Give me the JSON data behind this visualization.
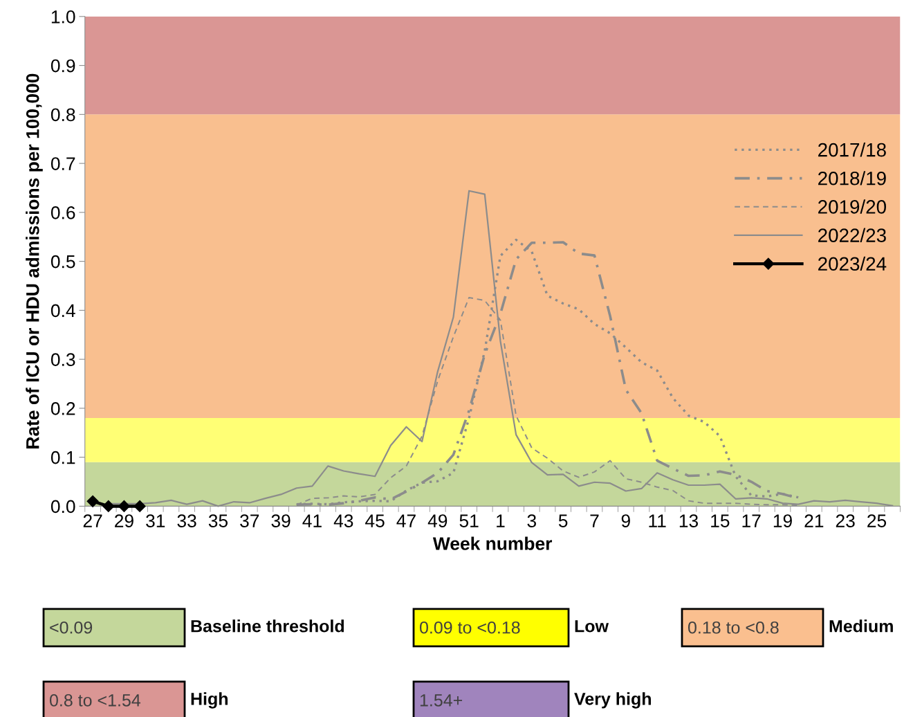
{
  "chart_data": [
    {
      "type": "line",
      "xlabel": "Week number",
      "ylabel": "Rate of ICU or HDU admissions per 100,000",
      "categories": [
        "27",
        null,
        "29",
        null,
        "31",
        null,
        "33",
        null,
        "35",
        null,
        "37",
        null,
        "39",
        null,
        "41",
        null,
        "43",
        null,
        "45",
        null,
        "47",
        null,
        "49",
        null,
        "51",
        null,
        "1",
        null,
        "3",
        null,
        "5",
        null,
        "7",
        null,
        "9",
        null,
        "11",
        null,
        "13",
        null,
        "15",
        null,
        "17",
        null,
        "19",
        null,
        "21",
        null,
        "23",
        null,
        "25",
        null
      ],
      "ylim": [
        0,
        1.0
      ],
      "yticks": [
        {
          "value": 0,
          "label": "0.0"
        },
        0.1,
        0.2,
        0.3,
        0.4,
        0.5,
        0.6,
        0.7,
        0.8,
        0.9,
        {
          "value": 1,
          "label": "1.0"
        }
      ],
      "grid": false,
      "legend": "top right",
      "bands": [
        {
          "axis": "y",
          "from": 0,
          "to": 0.09,
          "color": "#c4d79b"
        },
        {
          "axis": "y",
          "from": 0.09,
          "to": 0.18,
          "color": "#ffff75"
        },
        {
          "axis": "y",
          "from": 0.18,
          "to": 0.8,
          "color": "#f9bf8f"
        },
        {
          "axis": "y",
          "from": 0.8,
          "to": 1.0,
          "color": "#da9694"
        }
      ],
      "series": [
        {
          "name": "2017/18",
          "color": "#8c8c8c",
          "line_style": "dotted",
          "marker": "none",
          "values": [
            null,
            null,
            null,
            null,
            null,
            null,
            null,
            null,
            null,
            null,
            null,
            null,
            null,
            0.004,
            0.005,
            0.004,
            0.008,
            0.01,
            0.011,
            0.01,
            0.032,
            0.048,
            0.051,
            0.068,
            0.18,
            0.317,
            0.511,
            0.544,
            0.52,
            0.43,
            0.414,
            0.402,
            0.372,
            0.353,
            0.324,
            0.294,
            0.277,
            0.221,
            0.185,
            0.172,
            0.143,
            0.061,
            0.022,
            0.02,
            0.025,
            0.018,
            null,
            null,
            null,
            null,
            null,
            null
          ]
        },
        {
          "name": "2018/19",
          "color": "#8c8c8c",
          "line_style": "dashdot",
          "marker": "none",
          "values": [
            null,
            null,
            null,
            null,
            null,
            null,
            null,
            null,
            null,
            null,
            null,
            null,
            null,
            0.003,
            0.004,
            0.003,
            0.006,
            0.011,
            0.018,
            0.014,
            0.03,
            0.048,
            0.068,
            0.105,
            0.195,
            0.31,
            0.393,
            0.504,
            0.538,
            0.538,
            0.539,
            0.516,
            0.512,
            0.388,
            0.238,
            0.19,
            0.093,
            0.077,
            0.062,
            0.063,
            0.071,
            0.064,
            0.05,
            0.031,
            0.025,
            0.016,
            null,
            null,
            null,
            null,
            null,
            null
          ]
        },
        {
          "name": "2019/20",
          "color": "#8c8c8c",
          "line_style": "dashed",
          "marker": "none",
          "values": [
            null,
            null,
            null,
            null,
            null,
            null,
            null,
            null,
            null,
            null,
            null,
            null,
            null,
            0.003,
            0.016,
            0.017,
            0.021,
            0.019,
            0.024,
            0.058,
            0.082,
            0.143,
            0.256,
            0.346,
            0.426,
            0.42,
            0.38,
            0.185,
            0.119,
            0.098,
            0.072,
            0.059,
            0.07,
            0.093,
            0.056,
            0.049,
            0.039,
            0.032,
            0.011,
            0.006,
            0.006,
            0.006,
            0.004,
            0.003,
            0.003,
            0.002,
            null,
            null,
            null,
            null,
            null,
            null
          ]
        },
        {
          "name": "2022/23",
          "color": "#8c8c8c",
          "line_style": "solid",
          "marker": "none",
          "values": [
            null,
            0.005,
            0.005,
            0.005,
            0.007,
            0.012,
            0.004,
            0.011,
            0.0,
            0.009,
            0.007,
            0.016,
            0.024,
            0.037,
            0.041,
            0.082,
            0.072,
            0.066,
            0.061,
            0.124,
            0.162,
            0.132,
            0.275,
            0.386,
            0.644,
            0.637,
            0.337,
            0.146,
            0.089,
            0.064,
            0.065,
            0.041,
            0.049,
            0.047,
            0.031,
            0.036,
            0.068,
            0.054,
            0.043,
            0.043,
            0.045,
            0.015,
            0.017,
            0.015,
            0.006,
            0.004,
            0.011,
            0.009,
            0.012,
            0.009,
            0.006,
            0.001
          ]
        },
        {
          "name": "2023/24",
          "color": "#000000",
          "line_style": "solid",
          "marker": "diamond",
          "values": [
            0.01,
            0.0,
            0.0,
            0.0,
            null,
            null,
            null,
            null,
            null,
            null,
            null,
            null,
            null,
            null,
            null,
            null,
            null,
            null,
            null,
            null,
            null,
            null,
            null,
            null,
            null,
            null,
            null,
            null,
            null,
            null,
            null,
            null,
            null,
            null,
            null,
            null,
            null,
            null,
            null,
            null,
            null,
            null,
            null,
            null,
            null,
            null,
            null,
            null,
            null,
            null,
            null,
            null
          ]
        }
      ]
    },
    {
      "type": "other",
      "categories": [
        "<0.09",
        "0.09 to <0.18",
        "0.18 to <0.8",
        "0.8 to <1.54",
        "1.54+"
      ],
      "colors": [
        "#c4d79b",
        "#ffff00",
        "#fabf8f",
        "#da9694",
        "#a084bd"
      ],
      "annotations": [
        "Baseline threshold",
        "Low",
        "Medium",
        "High",
        "Very high"
      ]
    }
  ]
}
